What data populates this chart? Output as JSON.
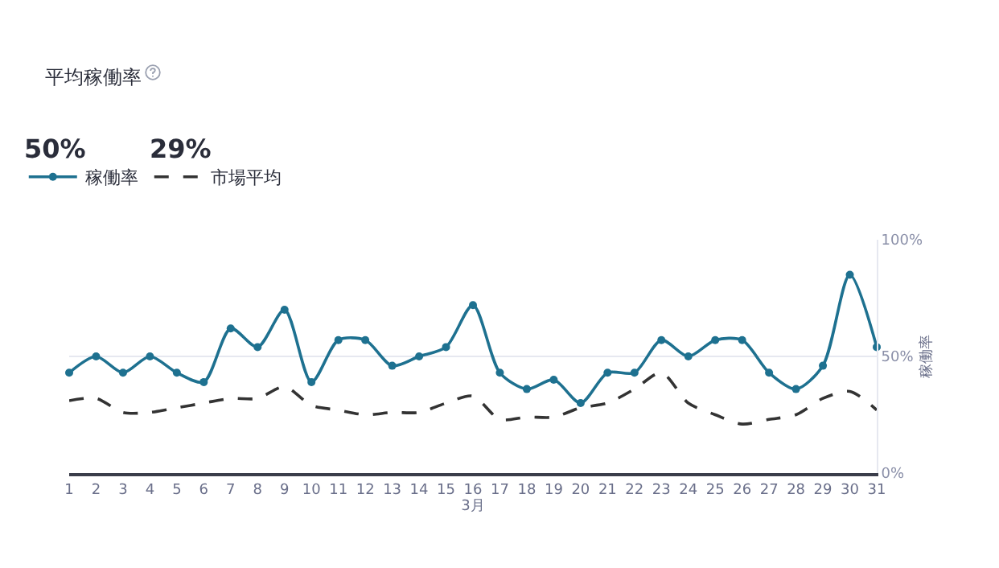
{
  "chart_data": {
    "type": "line",
    "title": "平均稼働率",
    "annotations": [
      "50%",
      "29%"
    ],
    "xlabel": "3月",
    "y2label": "稼働率",
    "x": [
      1,
      2,
      3,
      4,
      5,
      6,
      7,
      8,
      9,
      10,
      11,
      12,
      13,
      14,
      15,
      16,
      17,
      18,
      19,
      20,
      21,
      22,
      23,
      24,
      25,
      26,
      27,
      28,
      29,
      30,
      31
    ],
    "xlim": [
      1,
      31
    ],
    "xticks": [
      1,
      2,
      3,
      4,
      5,
      6,
      7,
      8,
      9,
      10,
      11,
      12,
      13,
      14,
      15,
      16,
      17,
      18,
      19,
      20,
      21,
      22,
      23,
      24,
      25,
      26,
      27,
      28,
      29,
      30,
      31
    ],
    "y2lim": [
      0,
      100
    ],
    "y2ticks": [
      {
        "value": 0,
        "label": "0%"
      },
      {
        "value": 50,
        "label": "50%"
      },
      {
        "value": 100,
        "label": "100%"
      }
    ],
    "grid": "y",
    "legend": "top left",
    "series": [
      {
        "name": "稼働率",
        "color": "#1e7190",
        "axis": "y2",
        "marker": "circle",
        "line_style": "solid",
        "values": [
          43,
          50,
          43,
          50,
          43,
          39,
          62,
          54,
          70,
          39,
          57,
          57,
          46,
          50,
          54,
          72,
          43,
          36,
          40,
          30,
          43,
          43,
          57,
          50,
          57,
          57,
          43,
          36,
          46,
          85,
          54
        ]
      },
      {
        "name": "市場平均",
        "color": "#333333",
        "axis": "y2",
        "marker": "none",
        "line_style": "dashed",
        "values": [
          31,
          32,
          26,
          26,
          28,
          30,
          32,
          32,
          37,
          29,
          27,
          25,
          26,
          26,
          30,
          33,
          23,
          24,
          24,
          28,
          30,
          36,
          43,
          30,
          25,
          21,
          23,
          25,
          32,
          35,
          27
        ]
      }
    ]
  }
}
